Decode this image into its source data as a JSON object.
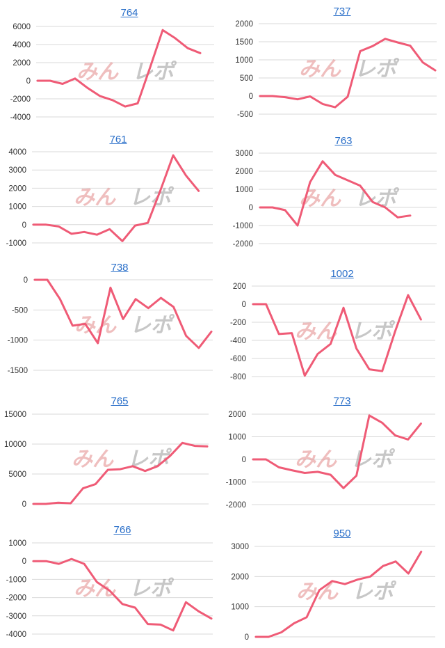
{
  "colors": {
    "line": "#ef5b76",
    "title": "#2a6fc9",
    "grid": "#d9d9d9",
    "tick": "#333333"
  },
  "watermark": {
    "pink": "みん",
    "gray": "レポ"
  },
  "chart_data": [
    {
      "type": "line",
      "title": "764",
      "ylim": [
        -4000,
        6000
      ],
      "yticks": [
        6000,
        4000,
        2000,
        0,
        -2000,
        -4000
      ],
      "series": [
        {
          "values": [
            0,
            0,
            -350,
            250,
            -800,
            -1700,
            -2150,
            -2850,
            -2500,
            1500,
            5600,
            4700,
            3600,
            3050
          ]
        }
      ]
    },
    {
      "type": "line",
      "title": "737",
      "ylim": [
        -500,
        2000
      ],
      "yticks": [
        2000,
        1500,
        1000,
        500,
        0,
        -500
      ],
      "series": [
        {
          "values": [
            0,
            0,
            -30,
            -90,
            -10,
            -220,
            -310,
            -20,
            1240,
            1380,
            1580,
            1480,
            1390,
            930,
            710
          ]
        }
      ]
    },
    {
      "type": "line",
      "title": "761",
      "ylim": [
        -1000,
        4000
      ],
      "yticks": [
        4000,
        3000,
        2000,
        1000,
        0,
        -1000
      ],
      "series": [
        {
          "values": [
            0,
            0,
            -100,
            -500,
            -400,
            -550,
            -250,
            -900,
            -50,
            100,
            1900,
            3800,
            2700,
            1850
          ]
        }
      ]
    },
    {
      "type": "line",
      "title": "763",
      "ylim": [
        -2000,
        3000
      ],
      "yticks": [
        3000,
        2000,
        1000,
        0,
        -1000,
        -2000
      ],
      "series": [
        {
          "values": [
            0,
            0,
            -150,
            -1000,
            1400,
            2550,
            1800,
            1500,
            1200,
            300,
            0,
            -550,
            -450
          ]
        }
      ]
    },
    {
      "type": "line",
      "title": "738",
      "ylim": [
        -1500,
        0
      ],
      "yticks": [
        0,
        -500,
        -1000,
        -1500
      ],
      "series": [
        {
          "values": [
            0,
            0,
            -320,
            -760,
            -730,
            -1050,
            -130,
            -650,
            -320,
            -470,
            -300,
            -450,
            -930,
            -1130,
            -860
          ]
        }
      ]
    },
    {
      "type": "line",
      "title": "1002",
      "ylim": [
        -800,
        200
      ],
      "yticks": [
        200,
        0,
        -200,
        -400,
        -600,
        -800
      ],
      "series": [
        {
          "values": [
            0,
            0,
            -330,
            -320,
            -790,
            -550,
            -440,
            -40,
            -490,
            -720,
            -740,
            -300,
            100,
            -170
          ]
        }
      ]
    },
    {
      "type": "line",
      "title": "765",
      "ylim": [
        0,
        15000
      ],
      "yticks": [
        15000,
        10000,
        5000,
        0
      ],
      "series": [
        {
          "values": [
            0,
            0,
            200,
            100,
            2600,
            3300,
            5700,
            5800,
            6300,
            5500,
            6300,
            8000,
            10200,
            9700,
            9600
          ]
        }
      ]
    },
    {
      "type": "line",
      "title": "773",
      "ylim": [
        -2000,
        2000
      ],
      "yticks": [
        2000,
        1000,
        0,
        -1000,
        -2000
      ],
      "series": [
        {
          "values": [
            0,
            0,
            -350,
            -480,
            -600,
            -550,
            -680,
            -1270,
            -720,
            1940,
            1620,
            1060,
            880,
            1580
          ]
        }
      ]
    },
    {
      "type": "line",
      "title": "766",
      "ylim": [
        -4000,
        1000
      ],
      "yticks": [
        1000,
        0,
        -1000,
        -2000,
        -3000,
        -4000
      ],
      "series": [
        {
          "values": [
            0,
            0,
            -150,
            120,
            -150,
            -1150,
            -1620,
            -2350,
            -2550,
            -3450,
            -3480,
            -3800,
            -2250,
            -2750,
            -3150
          ]
        }
      ]
    },
    {
      "type": "line",
      "title": "950",
      "ylim": [
        0,
        3000
      ],
      "yticks": [
        3000,
        2000,
        1000,
        0
      ],
      "series": [
        {
          "values": [
            0,
            0,
            150,
            450,
            650,
            1550,
            1850,
            1750,
            1900,
            2000,
            2350,
            2500,
            2100,
            2820
          ]
        }
      ]
    }
  ]
}
